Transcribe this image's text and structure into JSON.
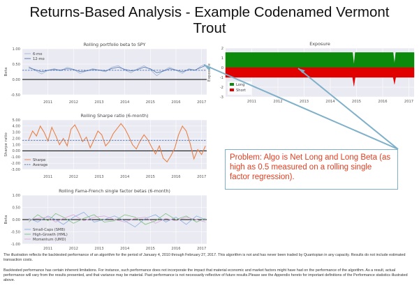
{
  "slide": {
    "title": "Returns-Based Analysis - Example Codenamed Vermont Trout",
    "callout": "Problem: Algo is Net Long and Long Beta (as high as 0.5 measured on a rolling single factor regression).",
    "footnote1": "The illustration reflects the backtested performance of an algorithm for the period of January 4, 2010 through February 27, 2017. This algorithm is not and has never been traded by Quantopian in any capacity. Results do not include estimated transaction costs.",
    "footnote2": "Backtested performance has certain inherent limitations. For instance, such performance does not incorporate the impact that material economic and market factors might have had on the performance of the algorithm. As a result, actual performance will vary from the results presented, and that variance may be material. Past performance is not necessarily reflective of future results.Please see the Appendix hereto for important definitions of the Performance statistics illustrated above."
  },
  "colors": {
    "panel_bg": "#eaeaf2",
    "grid": "#ffffff",
    "series_blue": "#9db4d3",
    "avg_blue": "#4c72b0",
    "sharpe_orange": "#e8824a",
    "smb": "#8eaee0",
    "hml": "#7fbf7f",
    "umd": "#d9a7d9",
    "long_green": "#0b8a0b",
    "short_red": "#e00000",
    "callout_text": "#e23d1f",
    "arrow": "#7fb0c9"
  },
  "chart_data": [
    {
      "type": "line",
      "title": "Rolling portfolio beta to SPY",
      "ylabel": "Beta",
      "ylim": [
        -0.5,
        1.0
      ],
      "yticks": [
        "1.00",
        "0.50",
        "0.00",
        "-0.50"
      ],
      "xticks": [
        "2011",
        "2012",
        "2013",
        "2014",
        "2015",
        "2016",
        "2017"
      ],
      "x": [
        2010.25,
        2010.5,
        2010.75,
        2011.0,
        2011.25,
        2011.5,
        2011.75,
        2012.0,
        2012.25,
        2012.5,
        2012.75,
        2013.0,
        2013.25,
        2013.5,
        2013.75,
        2014.0,
        2014.25,
        2014.5,
        2014.75,
        2015.0,
        2015.25,
        2015.5,
        2015.75,
        2016.0,
        2016.25,
        2016.5,
        2016.75,
        2017.0,
        2017.15
      ],
      "series": [
        {
          "name": "6-mo",
          "values": [
            0.42,
            0.3,
            0.18,
            0.3,
            0.35,
            0.28,
            0.4,
            0.33,
            0.2,
            0.28,
            0.35,
            0.3,
            0.25,
            0.4,
            0.45,
            0.3,
            0.22,
            0.35,
            0.45,
            0.32,
            0.12,
            0.28,
            0.4,
            0.3,
            0.2,
            0.35,
            0.3,
            0.45,
            0.5
          ]
        },
        {
          "name": "12-mo",
          "values": [
            0.38,
            0.32,
            0.25,
            0.3,
            0.32,
            0.31,
            0.35,
            0.33,
            0.26,
            0.28,
            0.32,
            0.31,
            0.28,
            0.36,
            0.4,
            0.33,
            0.28,
            0.32,
            0.4,
            0.35,
            0.22,
            0.27,
            0.35,
            0.31,
            0.25,
            0.32,
            0.31,
            0.4,
            0.45
          ]
        }
      ],
      "average": 0.3,
      "legend": "top-left"
    },
    {
      "type": "area",
      "title": "Exposure",
      "ylabel": "Exposure",
      "ylim": [
        -3,
        2
      ],
      "yticks": [
        "2",
        "1",
        "0",
        "-1",
        "-2",
        "-3"
      ],
      "xticks": [
        "2011",
        "2012",
        "2013",
        "2014",
        "2015",
        "2016",
        "2017"
      ],
      "x": [
        2010.0,
        2014.85,
        2014.9,
        2014.95,
        2016.4,
        2016.45,
        2016.5,
        2017.2
      ],
      "series": [
        {
          "name": "Long",
          "values": [
            1.55,
            1.55,
            0.3,
            1.55,
            1.55,
            0.4,
            1.55,
            1.55
          ]
        },
        {
          "name": "Short",
          "values": [
            -1.0,
            -1.0,
            -1.9,
            -1.0,
            -1.0,
            -1.7,
            -1.0,
            -1.0
          ]
        }
      ],
      "legend": "lower-left"
    },
    {
      "type": "line",
      "title": "Rolling Sharpe ratio (6-month)",
      "ylabel": "Sharpe ratio",
      "ylim": [
        -3.0,
        5.0
      ],
      "yticks": [
        "5.00",
        "4.00",
        "3.00",
        "2.00",
        "1.00",
        "0.00",
        "-1.00",
        "-2.00",
        "-3.00"
      ],
      "xticks": [
        "2011",
        "2012",
        "2013",
        "2014",
        "2015",
        "2016",
        "2017"
      ],
      "x": [
        2010.25,
        2010.4,
        2010.55,
        2010.7,
        2010.85,
        2011.0,
        2011.15,
        2011.3,
        2011.45,
        2011.6,
        2011.75,
        2011.9,
        2012.05,
        2012.2,
        2012.35,
        2012.5,
        2012.65,
        2012.8,
        2012.95,
        2013.1,
        2013.25,
        2013.4,
        2013.55,
        2013.7,
        2013.85,
        2014.0,
        2014.15,
        2014.3,
        2014.45,
        2014.6,
        2014.75,
        2014.9,
        2015.05,
        2015.2,
        2015.35,
        2015.5,
        2015.65,
        2015.8,
        2015.95,
        2016.1,
        2016.25,
        2016.4,
        2016.55,
        2016.7,
        2016.85,
        2017.0,
        2017.15
      ],
      "series": [
        {
          "name": "Sharpe",
          "values": [
            1.8,
            3.2,
            2.4,
            4.0,
            3.0,
            1.6,
            3.8,
            2.5,
            1.0,
            2.0,
            0.8,
            3.5,
            4.2,
            3.0,
            1.5,
            2.2,
            0.5,
            1.8,
            3.2,
            2.6,
            0.8,
            1.5,
            2.8,
            3.6,
            4.4,
            3.6,
            2.4,
            1.0,
            0.3,
            1.6,
            2.6,
            1.8,
            0.6,
            -0.5,
            0.8,
            -1.2,
            -1.8,
            -0.8,
            0.4,
            2.6,
            4.0,
            3.2,
            1.2,
            -1.3,
            0.2,
            -0.6,
            0.8
          ]
        }
      ],
      "average": 1.7,
      "legend": "lower-left"
    },
    {
      "type": "line",
      "title": "Rolling Fama-French single factor betas (6-month)",
      "ylabel": "Beta",
      "ylim": [
        -1.0,
        1.0
      ],
      "yticks": [
        "1.00",
        "0.50",
        "0.00",
        "-0.50",
        "-1.00"
      ],
      "xticks": [
        "2011",
        "2012",
        "2013",
        "2014",
        "2015",
        "2016",
        "2017"
      ],
      "x": [
        2010.25,
        2010.6,
        2011.0,
        2011.3,
        2011.6,
        2012.0,
        2012.4,
        2012.8,
        2013.2,
        2013.6,
        2014.0,
        2014.4,
        2014.8,
        2015.2,
        2015.6,
        2016.0,
        2016.4,
        2016.8,
        2017.15
      ],
      "series": [
        {
          "name": "Small-Caps (SMB)",
          "values": [
            0.05,
            -0.1,
            0.15,
            0.0,
            -0.2,
            0.1,
            0.3,
            -0.1,
            0.0,
            0.15,
            -0.05,
            -0.3,
            0.05,
            0.2,
            -0.1,
            0.1,
            -0.2,
            0.15,
            0.0
          ]
        },
        {
          "name": "High-Growth (HML)",
          "values": [
            -0.1,
            0.2,
            -0.05,
            0.25,
            0.1,
            -0.15,
            0.05,
            0.2,
            -0.1,
            -0.05,
            0.2,
            0.1,
            -0.2,
            -0.05,
            0.25,
            0.0,
            0.15,
            -0.1,
            0.05
          ]
        },
        {
          "name": "Momentum (UMD)",
          "values": [
            0.0,
            0.05,
            0.1,
            -0.1,
            0.05,
            0.2,
            -0.05,
            0.1,
            0.15,
            0.0,
            -0.1,
            0.05,
            0.1,
            -0.15,
            0.05,
            -0.05,
            0.1,
            0.0,
            -0.1
          ]
        }
      ],
      "legend": "lower-left"
    }
  ]
}
